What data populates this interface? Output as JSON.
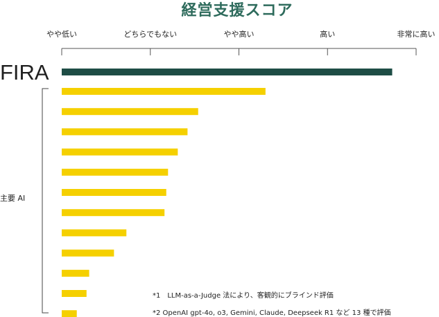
{
  "chart_data": {
    "type": "bar",
    "orientation": "horizontal",
    "title": "経営支援スコア",
    "x_tick_labels": [
      "やや低い",
      "どちらでもない",
      "やや高い",
      "高い",
      "非常に高い"
    ],
    "xlim": [
      0,
      4
    ],
    "grid": false,
    "highlight": {
      "label": "FIRA",
      "value": 3.73,
      "color": "#1e4d45"
    },
    "group": {
      "label": "主要 AI",
      "color": "#f5d000",
      "values": [
        2.3,
        1.54,
        1.42,
        1.31,
        1.2,
        1.18,
        1.16,
        0.73,
        0.59,
        0.31,
        0.28,
        0.17
      ]
    },
    "notes": [
      "*1　LLM-as-a-Judge 法により、客観的にブラインド評価",
      "*2 OpenAI gpt-4o, o3, Gemini, Claude,  Deepseek R1 など 13 種で評価"
    ]
  }
}
